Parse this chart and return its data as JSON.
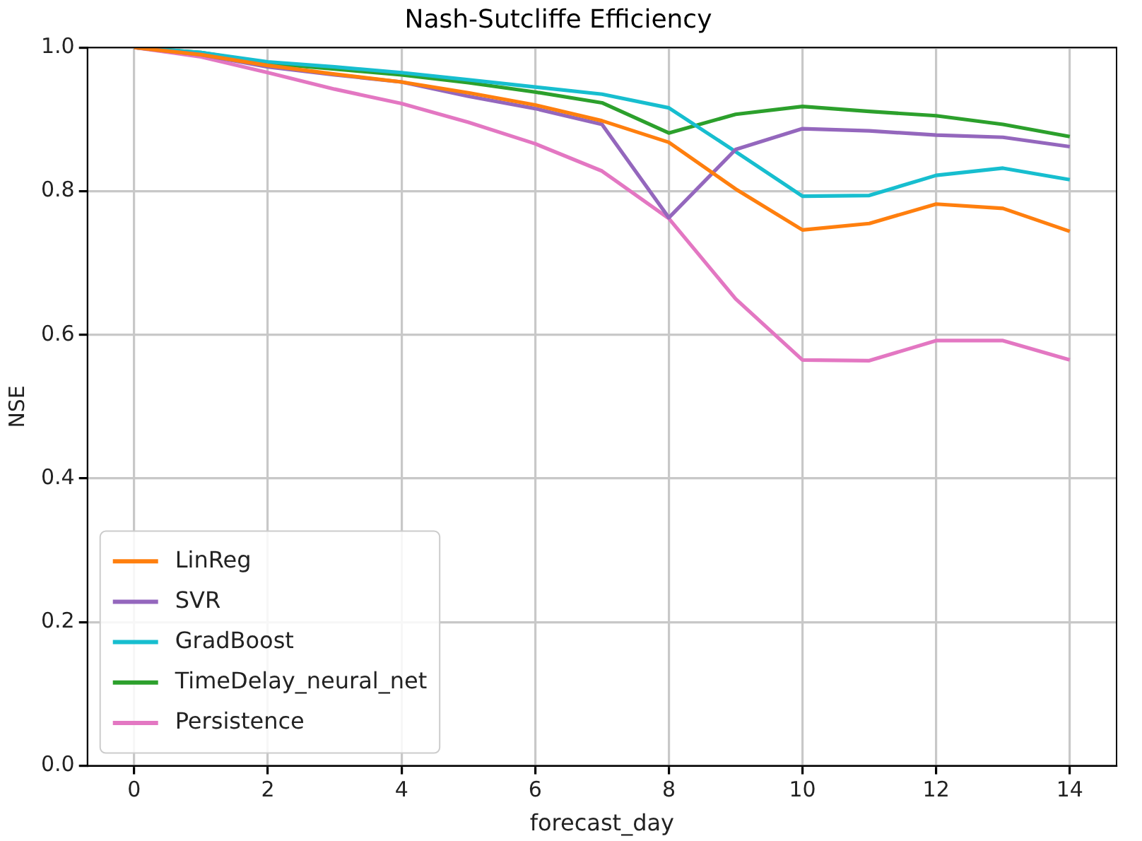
{
  "chart_data": {
    "type": "line",
    "title": "Nash-Sutcliffe Efficiency",
    "xlabel": "forecast_day",
    "ylabel": "NSE",
    "x": [
      0,
      1,
      2,
      3,
      4,
      5,
      6,
      7,
      8,
      9,
      10,
      11,
      12,
      13,
      14
    ],
    "series": [
      {
        "name": "LinReg",
        "color": "#ff7f0e",
        "values": [
          1.0,
          0.99,
          0.975,
          0.963,
          0.952,
          0.937,
          0.92,
          0.898,
          0.868,
          0.803,
          0.746,
          0.755,
          0.782,
          0.776,
          0.744
        ]
      },
      {
        "name": "SVR",
        "color": "#9467bd",
        "values": [
          1.0,
          0.99,
          0.973,
          0.962,
          0.952,
          0.932,
          0.915,
          0.893,
          0.763,
          0.858,
          0.887,
          0.884,
          0.878,
          0.875,
          0.862
        ]
      },
      {
        "name": "GradBoost",
        "color": "#17becf",
        "values": [
          1.0,
          0.993,
          0.98,
          0.973,
          0.965,
          0.955,
          0.945,
          0.935,
          0.916,
          0.855,
          0.793,
          0.794,
          0.822,
          0.832,
          0.816
        ]
      },
      {
        "name": "TimeDelay_neural_net",
        "color": "#2ca02c",
        "values": [
          1.0,
          0.993,
          0.978,
          0.97,
          0.962,
          0.951,
          0.938,
          0.923,
          0.881,
          0.907,
          0.918,
          0.911,
          0.905,
          0.893,
          0.876
        ]
      },
      {
        "name": "Persistence",
        "color": "#e377c2",
        "values": [
          1.0,
          0.987,
          0.965,
          0.942,
          0.922,
          0.896,
          0.866,
          0.828,
          0.762,
          0.65,
          0.565,
          0.564,
          0.592,
          0.592,
          0.565
        ]
      }
    ],
    "xlim": [
      -0.7,
      14.7
    ],
    "xticks": [
      0,
      2,
      4,
      6,
      8,
      10,
      12,
      14
    ],
    "ylim": [
      0,
      1
    ],
    "yticks": [
      {
        "value": 0,
        "label": "0.0"
      },
      {
        "value": 0.2,
        "label": "0.2"
      },
      {
        "value": 0.4,
        "label": "0.4"
      },
      {
        "value": 0.6,
        "label": "0.6"
      },
      {
        "value": 0.8,
        "label": "0.8"
      },
      {
        "value": 1,
        "label": "1.0"
      }
    ],
    "grid": true,
    "legend": "bottom left",
    "marker": "none",
    "line_style": "solid"
  }
}
